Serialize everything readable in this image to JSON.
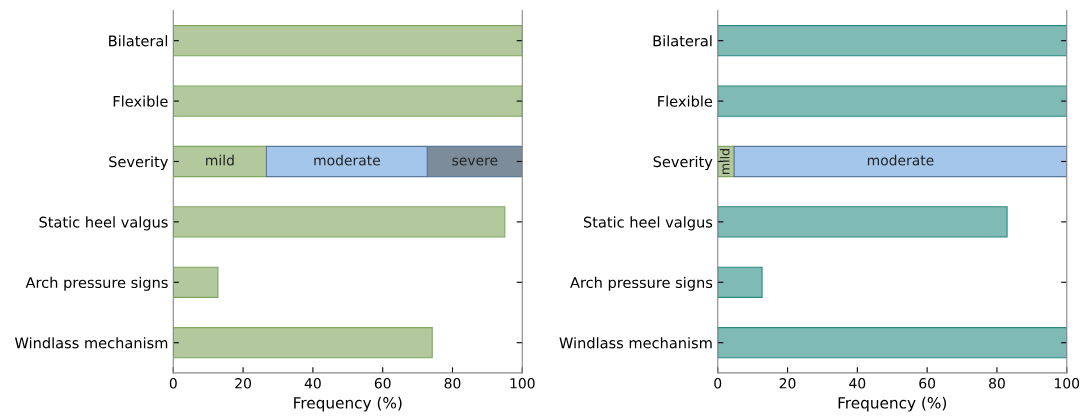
{
  "chart_data": [
    {
      "type": "bar",
      "orientation": "horizontal",
      "stacked": true,
      "categories": [
        "Bilateral",
        "Flexible",
        "Severity",
        "Static heel valgus",
        "Arch pressure signs",
        "Windlass mechanism"
      ],
      "xlabel": "Frequency (%)",
      "xlim": [
        0,
        100
      ],
      "xticks": [
        0,
        20,
        40,
        60,
        80,
        100
      ],
      "grid": false,
      "legend": false,
      "series": [
        {
          "color": "#b3c89c",
          "values": [
            100,
            100,
            null,
            95,
            12.8,
            74.2
          ]
        },
        {
          "name": "mild",
          "color": "#b3c89c",
          "values": [
            null,
            null,
            26.7,
            null,
            null,
            null
          ]
        },
        {
          "name": "moderate",
          "color": "#a4c6ea",
          "values": [
            null,
            null,
            46.1,
            null,
            null,
            null
          ]
        },
        {
          "name": "severe",
          "color": "#7d8c9b",
          "values": [
            null,
            null,
            27.2,
            null,
            null,
            null
          ]
        }
      ]
    },
    {
      "type": "bar",
      "orientation": "horizontal",
      "stacked": true,
      "categories": [
        "Bilateral",
        "Flexible",
        "Severity",
        "Static heel valgus",
        "Arch pressure signs",
        "Windlass mechanism"
      ],
      "xlabel": "Frequency (%)",
      "xlim": [
        0,
        100
      ],
      "xticks": [
        0,
        20,
        40,
        60,
        80,
        100
      ],
      "grid": false,
      "legend": false,
      "series": [
        {
          "color": "#80bab5",
          "values": [
            100,
            100,
            null,
            82.9,
            12.7,
            100
          ]
        },
        {
          "name": "mild",
          "color": "#b3c89c",
          "values": [
            null,
            null,
            4.7,
            null,
            null,
            null
          ]
        },
        {
          "name": "moderate",
          "color": "#a4c6ea",
          "values": [
            null,
            null,
            95.3,
            null,
            null,
            null
          ]
        }
      ]
    }
  ]
}
